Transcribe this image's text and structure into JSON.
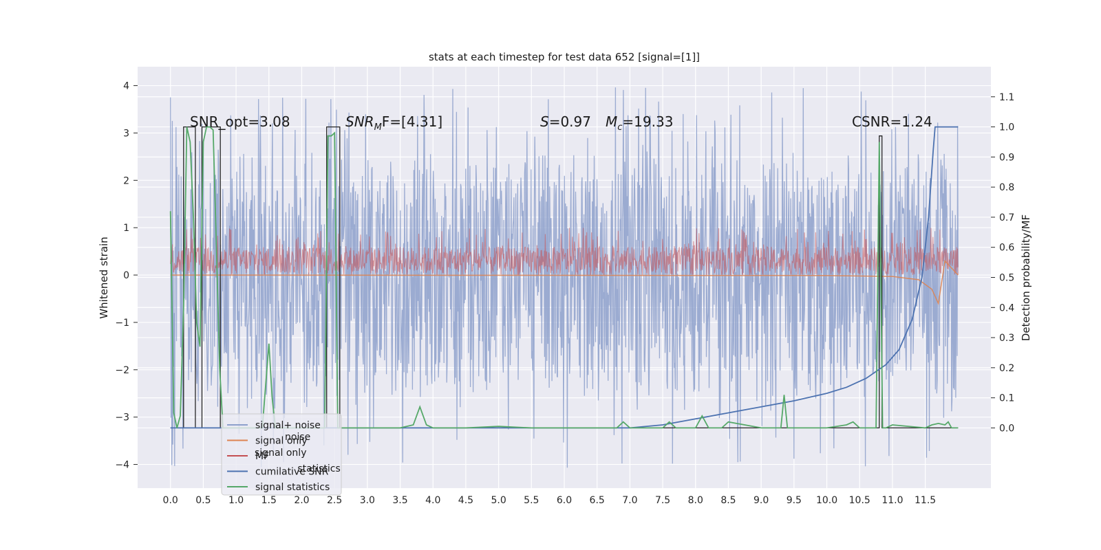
{
  "chart_data": {
    "type": "line",
    "title": "stats at each timestep for test data 652 [signal=[1]]",
    "xlabel": "",
    "ylabel_left": "Whitened strain",
    "ylabel_right": "Detection probability/MF",
    "xlim": [
      -0.5,
      12.5
    ],
    "ylim_left": [
      -4.5,
      4.4
    ],
    "ylim_right": [
      -0.2,
      1.2
    ],
    "x_ticks": [
      "0.0",
      "0.5",
      "1.0",
      "1.5",
      "2.0",
      "2.5",
      "3.0",
      "3.5",
      "4.0",
      "4.5",
      "5.0",
      "5.5",
      "6.0",
      "6.5",
      "7.0",
      "7.5",
      "8.0",
      "8.5",
      "9.0",
      "9.5",
      "10.0",
      "10.5",
      "11.0",
      "11.5"
    ],
    "y_ticks_left": [
      "4",
      "3",
      "2",
      "1",
      "0",
      "−1",
      "−2",
      "−3",
      "−4"
    ],
    "y_ticks_right": [
      "1.1",
      "1.0",
      "0.9",
      "0.8",
      "0.7",
      "0.6",
      "0.5",
      "0.4",
      "0.3",
      "0.2",
      "0.1",
      "0.0"
    ],
    "grid": true,
    "background": "#eaeaf2",
    "legend_placement": "lower-left",
    "annotations": {
      "snr_opt": "SNR_opt=3.08",
      "snr_mf_name": "SNR",
      "snr_mf_sub": "M",
      "snr_mf_rest": "F=[4.31]",
      "s_name": "S",
      "s_rest": "=0.97",
      "mc_name": "M",
      "mc_sub": "c",
      "mc_rest": "=19.33",
      "csnr": "CSNR=1.24"
    },
    "legend": [
      {
        "label": "signal+ noise",
        "color": "#8da0cb"
      },
      {
        "label": "signal only",
        "color": "#dd8452"
      },
      {
        "label": "MF",
        "color": "#c44e52"
      },
      {
        "label": "cumilative SNR",
        "color": "#4c72b0"
      },
      {
        "label": "signal statistics",
        "color": "#55a868"
      }
    ],
    "legend_shadow": [
      {
        "label": "noise",
        "dx": 0.55
      },
      {
        "label": "signal only",
        "dx": 0.0
      },
      {
        "label": "statistics",
        "dx": 0.78
      }
    ],
    "series": [
      {
        "name": "signal+ noise",
        "axis": "left",
        "color": "#8da0cb",
        "x_range": [
          0.0,
          12.0
        ],
        "base_amplitude": 1.8,
        "mean": 0.0,
        "peak_max": 3.97,
        "peak_min": -4.08
      },
      {
        "name": "signal only",
        "axis": "left",
        "color": "#dd8452",
        "x": [
          0.0,
          10.0,
          11.0,
          11.4,
          11.6,
          11.7,
          11.8,
          12.0
        ],
        "y": [
          0.0,
          -0.01,
          -0.03,
          -0.1,
          -0.3,
          -0.6,
          0.3,
          0.0
        ]
      },
      {
        "name": "MF",
        "axis": "left",
        "color": "#c44e52",
        "x_range": [
          0.0,
          12.0
        ],
        "band": [
          0.0,
          0.6
        ],
        "peak_max": 1.0
      },
      {
        "name": "cumilative SNR",
        "axis": "right",
        "color": "#4c72b0",
        "x": [
          0.0,
          6.5,
          7.0,
          7.5,
          8.0,
          8.5,
          9.0,
          9.5,
          10.0,
          10.3,
          10.6,
          10.9,
          11.1,
          11.3,
          11.45,
          11.55,
          11.62,
          11.65,
          12.0
        ],
        "y": [
          0.0,
          0.0,
          0.0,
          0.01,
          0.03,
          0.05,
          0.07,
          0.09,
          0.115,
          0.135,
          0.165,
          0.21,
          0.26,
          0.36,
          0.5,
          0.7,
          0.92,
          1.0,
          1.0
        ]
      },
      {
        "name": "signal statistics",
        "axis": "right",
        "color": "#55a868",
        "x": [
          0.0,
          0.05,
          0.1,
          0.15,
          0.2,
          0.25,
          0.3,
          0.35,
          0.4,
          0.45,
          0.5,
          0.55,
          0.6,
          0.65,
          0.7,
          0.75,
          0.8,
          0.85,
          0.9,
          0.95,
          1.0,
          1.1,
          1.2,
          1.3,
          1.4,
          1.5,
          1.55,
          1.6,
          1.7,
          1.8,
          2.0,
          2.2,
          2.35,
          2.4,
          2.45,
          2.5,
          2.55,
          2.6,
          2.65,
          3.0,
          3.5,
          3.7,
          3.8,
          3.9,
          4.0,
          4.5,
          5.0,
          5.5,
          6.0,
          6.5,
          6.8,
          6.9,
          7.0,
          7.5,
          7.6,
          7.7,
          8.0,
          8.1,
          8.2,
          8.3,
          8.4,
          8.5,
          9.0,
          9.3,
          9.35,
          9.4,
          9.5,
          10.0,
          10.3,
          10.4,
          10.5,
          10.7,
          10.75,
          10.8,
          10.85,
          10.9,
          11.0,
          11.5,
          11.6,
          11.7,
          11.8,
          11.85,
          11.9,
          12.0
        ],
        "y": [
          0.72,
          0.05,
          0.0,
          0.04,
          0.4,
          1.0,
          0.95,
          0.7,
          0.35,
          0.27,
          0.95,
          1.0,
          1.0,
          0.99,
          0.6,
          0.2,
          0.0,
          0.0,
          0.0,
          0.0,
          0.0,
          0.0,
          0.0,
          0.0,
          0.0,
          0.28,
          0.1,
          0.0,
          0.0,
          0.0,
          0.0,
          0.0,
          0.0,
          0.97,
          0.97,
          0.98,
          0.0,
          0.0,
          0.0,
          0.0,
          0.0,
          0.01,
          0.07,
          0.01,
          0.0,
          0.0,
          0.005,
          0.0,
          0.0,
          0.0,
          0.0,
          0.02,
          0.0,
          0.0,
          0.02,
          0.0,
          0.0,
          0.04,
          0.0,
          0.0,
          0.0,
          0.02,
          0.0,
          0.0,
          0.11,
          0.0,
          0.0,
          0.0,
          0.01,
          0.02,
          0.0,
          0.0,
          0.0,
          0.95,
          0.0,
          0.0,
          0.01,
          0.0,
          0.01,
          0.015,
          0.01,
          0.02,
          0.0,
          0.0
        ]
      }
    ],
    "threshold_steps": {
      "color": "#262626",
      "x": [
        0.0,
        0.2,
        0.2,
        0.38,
        0.38,
        0.48,
        0.48,
        0.76,
        0.76,
        2.38,
        2.38,
        2.58,
        2.58,
        10.8,
        10.8,
        10.84,
        10.84,
        12.0
      ],
      "y": [
        0.0,
        0.0,
        1.0,
        1.0,
        0.0,
        0.0,
        1.0,
        1.0,
        0.0,
        0.0,
        1.0,
        1.0,
        0.0,
        0.0,
        0.97,
        0.97,
        0.0,
        0.0
      ]
    }
  }
}
